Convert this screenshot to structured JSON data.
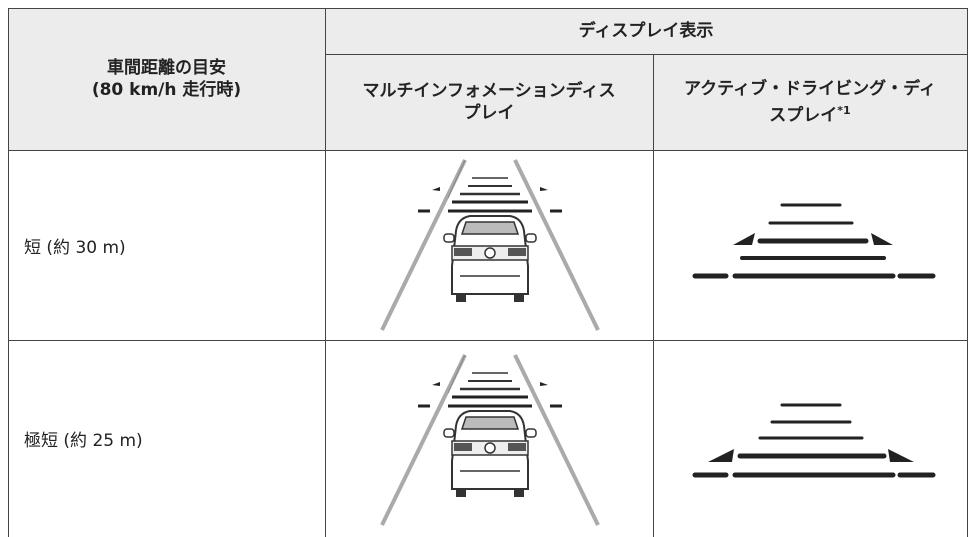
{
  "table": {
    "header": {
      "distance": [
        "車間距離の目安",
        "(80 km/h 走行時)"
      ],
      "display": "ディスプレイ表示",
      "columns": [
        {
          "text": "マルチインフォメーションディスプレイ"
        },
        {
          "text": "アクティブ・ドライビング・ディスプレイ",
          "note": "*1"
        }
      ]
    },
    "rows": [
      {
        "label": "短 (約 30 m)"
      },
      {
        "label": "極短 (約 25 m)"
      }
    ]
  }
}
